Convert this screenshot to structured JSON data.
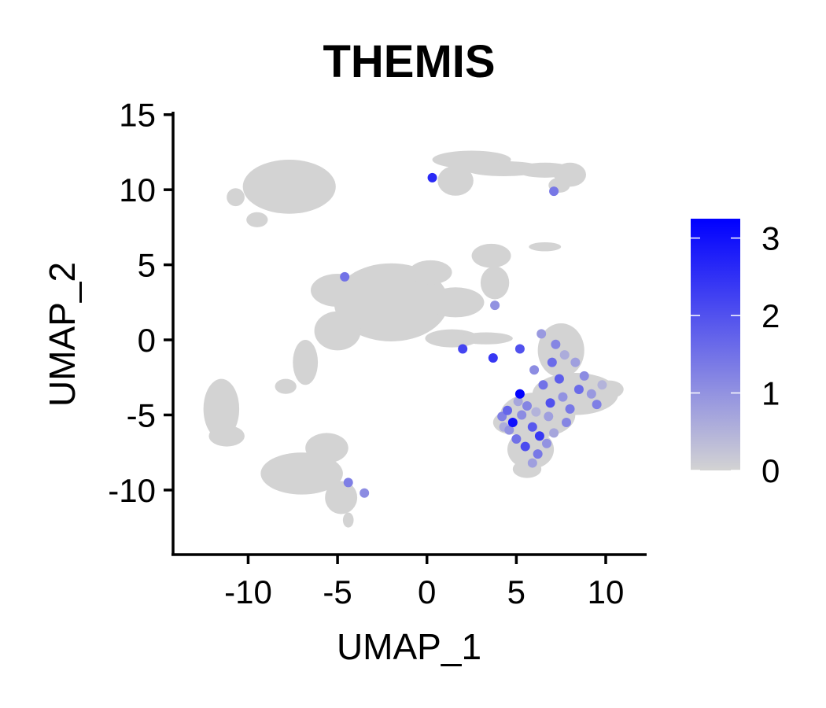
{
  "chart_data": {
    "type": "scatter",
    "title": "THEMIS",
    "xlabel": "UMAP_1",
    "ylabel": "UMAP_2",
    "xlim": [
      -14.2,
      12.2
    ],
    "ylim": [
      -14.3,
      15.3
    ],
    "xticks": [
      -10,
      -5,
      0,
      5,
      10
    ],
    "yticks": [
      -10,
      -5,
      0,
      5,
      10,
      15
    ],
    "grid": false,
    "background_color": "#d3d3d3",
    "high_color": "#0000ff",
    "legend": {
      "placement": "right",
      "min": 0,
      "max": 3.25,
      "ticks": [
        0,
        1,
        2,
        3
      ]
    },
    "clusters": [
      {
        "cx": -7.7,
        "cy": 10.2,
        "rx": 2.6,
        "ry": 1.8
      },
      {
        "cx": -10.7,
        "cy": 9.5,
        "rx": 0.5,
        "ry": 0.6
      },
      {
        "cx": -9.5,
        "cy": 8.0,
        "rx": 0.6,
        "ry": 0.5
      },
      {
        "cx": 2.5,
        "cy": 12.0,
        "rx": 2.2,
        "ry": 0.6
      },
      {
        "cx": 1.6,
        "cy": 10.6,
        "rx": 1.0,
        "ry": 1.0
      },
      {
        "cx": 4.3,
        "cy": 11.4,
        "rx": 2.2,
        "ry": 0.5
      },
      {
        "cx": 6.6,
        "cy": 11.3,
        "rx": 1.6,
        "ry": 0.5
      },
      {
        "cx": 8.0,
        "cy": 11.0,
        "rx": 0.9,
        "ry": 0.8
      },
      {
        "cx": 7.4,
        "cy": 10.3,
        "rx": 0.6,
        "ry": 0.5
      },
      {
        "cx": 6.6,
        "cy": 6.2,
        "rx": 0.9,
        "ry": 0.3
      },
      {
        "cx": -2.0,
        "cy": 2.5,
        "rx": 3.2,
        "ry": 2.6
      },
      {
        "cx": -5.0,
        "cy": 3.3,
        "rx": 1.5,
        "ry": 1.1
      },
      {
        "cx": -5.0,
        "cy": 0.6,
        "rx": 1.3,
        "ry": 1.3
      },
      {
        "cx": -6.8,
        "cy": -1.5,
        "rx": 0.7,
        "ry": 1.5
      },
      {
        "cx": -7.9,
        "cy": -3.1,
        "rx": 0.6,
        "ry": 0.5
      },
      {
        "cx": 1.6,
        "cy": 2.5,
        "rx": 1.6,
        "ry": 1.0
      },
      {
        "cx": 1.4,
        "cy": 0.1,
        "rx": 1.5,
        "ry": 0.6
      },
      {
        "cx": 3.3,
        "cy": 0.1,
        "rx": 1.5,
        "ry": 0.4
      },
      {
        "cx": 3.8,
        "cy": 3.8,
        "rx": 0.8,
        "ry": 1.1
      },
      {
        "cx": 3.6,
        "cy": 5.6,
        "rx": 1.1,
        "ry": 0.8
      },
      {
        "cx": 0.2,
        "cy": 4.5,
        "rx": 1.2,
        "ry": 0.8
      },
      {
        "cx": -11.5,
        "cy": -4.6,
        "rx": 1.0,
        "ry": 2.0
      },
      {
        "cx": -11.2,
        "cy": -6.4,
        "rx": 1.0,
        "ry": 0.7
      },
      {
        "cx": -7.0,
        "cy": -8.9,
        "rx": 2.3,
        "ry": 1.4
      },
      {
        "cx": -5.6,
        "cy": -7.2,
        "rx": 1.2,
        "ry": 1.0
      },
      {
        "cx": -4.8,
        "cy": -10.5,
        "rx": 0.9,
        "ry": 1.1
      },
      {
        "cx": -4.4,
        "cy": -12.0,
        "rx": 0.3,
        "ry": 0.5
      },
      {
        "cx": 7.5,
        "cy": -0.7,
        "rx": 1.3,
        "ry": 1.8
      },
      {
        "cx": 8.3,
        "cy": -3.6,
        "rx": 2.4,
        "ry": 1.4
      },
      {
        "cx": 6.2,
        "cy": -5.0,
        "rx": 2.1,
        "ry": 1.5
      },
      {
        "cx": 5.8,
        "cy": -7.3,
        "rx": 1.3,
        "ry": 1.3
      },
      {
        "cx": 5.6,
        "cy": -8.6,
        "rx": 0.8,
        "ry": 0.6
      },
      {
        "cx": 4.8,
        "cy": -5.5,
        "rx": 1.1,
        "ry": 0.8
      },
      {
        "cx": 10.2,
        "cy": -3.3,
        "rx": 0.8,
        "ry": 0.6
      }
    ],
    "highlighted_points": [
      {
        "x": 5.2,
        "y": -3.6,
        "v": 3.2
      },
      {
        "x": 4.8,
        "y": -5.5,
        "v": 3.0
      },
      {
        "x": 6.3,
        "y": -6.4,
        "v": 2.4
      },
      {
        "x": 5.5,
        "y": -7.1,
        "v": 2.1
      },
      {
        "x": 6.9,
        "y": -4.2,
        "v": 2.0
      },
      {
        "x": 5.9,
        "y": -5.8,
        "v": 1.9
      },
      {
        "x": 7.4,
        "y": -2.6,
        "v": 1.8
      },
      {
        "x": 4.5,
        "y": -4.7,
        "v": 1.7
      },
      {
        "x": 8.5,
        "y": -3.3,
        "v": 1.6
      },
      {
        "x": 7.0,
        "y": -1.5,
        "v": 1.6
      },
      {
        "x": 6.5,
        "y": -3.0,
        "v": 1.5
      },
      {
        "x": 5.0,
        "y": -6.6,
        "v": 1.5
      },
      {
        "x": 6.2,
        "y": -7.6,
        "v": 1.4
      },
      {
        "x": 8.0,
        "y": -4.6,
        "v": 1.4
      },
      {
        "x": 9.5,
        "y": -4.3,
        "v": 1.3
      },
      {
        "x": 4.2,
        "y": -5.1,
        "v": 1.3
      },
      {
        "x": 7.2,
        "y": -0.3,
        "v": 1.2
      },
      {
        "x": 5.6,
        "y": -4.4,
        "v": 1.2
      },
      {
        "x": 7.8,
        "y": -5.5,
        "v": 1.2
      },
      {
        "x": 6.0,
        "y": -2.0,
        "v": 1.1
      },
      {
        "x": 8.8,
        "y": -2.4,
        "v": 1.1
      },
      {
        "x": 5.3,
        "y": -5.0,
        "v": 1.1
      },
      {
        "x": 6.7,
        "y": -6.9,
        "v": 1.0
      },
      {
        "x": 4.6,
        "y": -6.0,
        "v": 1.0
      },
      {
        "x": 7.6,
        "y": -3.8,
        "v": 1.0
      },
      {
        "x": 9.2,
        "y": -3.6,
        "v": 0.9
      },
      {
        "x": 6.4,
        "y": 0.4,
        "v": 0.9
      },
      {
        "x": 5.9,
        "y": -8.2,
        "v": 0.8
      },
      {
        "x": 8.3,
        "y": -1.5,
        "v": 0.8
      },
      {
        "x": 6.8,
        "y": -5.1,
        "v": 0.8
      },
      {
        "x": 5.1,
        "y": -4.1,
        "v": 0.7
      },
      {
        "x": 7.1,
        "y": -6.2,
        "v": 0.7
      },
      {
        "x": 7.7,
        "y": -1.0,
        "v": 0.6
      },
      {
        "x": 4.3,
        "y": -5.8,
        "v": 0.6
      },
      {
        "x": 9.8,
        "y": -3.0,
        "v": 0.5
      },
      {
        "x": 6.1,
        "y": -4.8,
        "v": 0.5
      },
      {
        "x": 3.8,
        "y": 2.3,
        "v": 1.0
      },
      {
        "x": 5.2,
        "y": -0.6,
        "v": 2.0
      },
      {
        "x": 3.7,
        "y": -1.2,
        "v": 2.4
      },
      {
        "x": 2.0,
        "y": -0.6,
        "v": 2.2
      },
      {
        "x": -4.6,
        "y": 4.2,
        "v": 1.5
      },
      {
        "x": 7.1,
        "y": 9.9,
        "v": 1.4
      },
      {
        "x": 0.3,
        "y": 10.8,
        "v": 2.6
      },
      {
        "x": -4.4,
        "y": -9.5,
        "v": 1.3
      },
      {
        "x": -3.5,
        "y": -10.2,
        "v": 1.1
      }
    ]
  }
}
